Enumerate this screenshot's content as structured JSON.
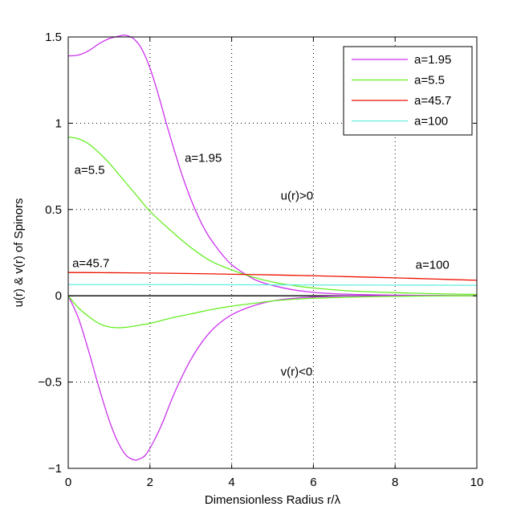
{
  "chart_data": {
    "type": "line",
    "title": "",
    "xlabel": "Dimensionless Radius r/λ",
    "ylabel": "u(r) & v(r) of Spinors",
    "xlim": [
      0,
      10
    ],
    "ylim": [
      -1,
      1.5
    ],
    "xticks": [
      0,
      2,
      4,
      6,
      8,
      10
    ],
    "xtick_labels": [
      "0",
      "2",
      "4",
      "6",
      "8",
      "10"
    ],
    "yticks": [
      -1,
      -0.5,
      0,
      0.5,
      1,
      1.5
    ],
    "ytick_labels": [
      "−1",
      "−0.5",
      "0",
      "0.5",
      "1",
      "1.5"
    ],
    "grid": true,
    "legend_position": "top-right",
    "legend": [
      {
        "label": "a=1.95",
        "color": "#cc33ee"
      },
      {
        "label": "a=5.5",
        "color": "#66ee22"
      },
      {
        "label": "a=45.7",
        "color": "#ee1100"
      },
      {
        "label": "a=100",
        "color": "#66eedd"
      }
    ],
    "series": [
      {
        "name": "a=1.95 u(r)",
        "color": "#cc33ee",
        "x": [
          0,
          0.25,
          0.5,
          0.75,
          1.0,
          1.25,
          1.4,
          1.6,
          1.8,
          2.0,
          2.2,
          2.4,
          2.6,
          2.8,
          3.0,
          3.2,
          3.4,
          3.6,
          3.8,
          4.0,
          4.3,
          4.6,
          5.0,
          5.5,
          6.0,
          6.5,
          7.0,
          8.0,
          9.0,
          10.0
        ],
        "y": [
          1.39,
          1.395,
          1.42,
          1.46,
          1.49,
          1.505,
          1.51,
          1.49,
          1.43,
          1.32,
          1.17,
          1.0,
          0.84,
          0.69,
          0.56,
          0.45,
          0.36,
          0.29,
          0.23,
          0.18,
          0.13,
          0.09,
          0.06,
          0.035,
          0.02,
          0.012,
          0.008,
          0.004,
          0.002,
          0.001
        ]
      },
      {
        "name": "a=1.95 v(r)",
        "color": "#cc33ee",
        "x": [
          0,
          0.25,
          0.5,
          0.75,
          1.0,
          1.2,
          1.4,
          1.6,
          1.75,
          1.9,
          2.1,
          2.3,
          2.5,
          2.7,
          3.0,
          3.3,
          3.6,
          4.0,
          4.5,
          5.0,
          5.5,
          6.0,
          6.5,
          7.0,
          8.0,
          9.0,
          10.0
        ],
        "y": [
          0,
          -0.13,
          -0.32,
          -0.53,
          -0.72,
          -0.84,
          -0.92,
          -0.95,
          -0.945,
          -0.92,
          -0.84,
          -0.74,
          -0.62,
          -0.51,
          -0.37,
          -0.26,
          -0.18,
          -0.11,
          -0.06,
          -0.03,
          -0.015,
          -0.007,
          -0.003,
          -0.001,
          0.0,
          0.0,
          0.0
        ]
      },
      {
        "name": "a=5.5 u(r)",
        "color": "#66ee22",
        "x": [
          0,
          0.25,
          0.5,
          0.75,
          1.0,
          1.25,
          1.5,
          1.75,
          2.0,
          2.5,
          3.0,
          3.5,
          4.0,
          4.5,
          5.0,
          5.5,
          6.0,
          6.5,
          7.0,
          8.0,
          9.0,
          10.0
        ],
        "y": [
          0.92,
          0.91,
          0.88,
          0.83,
          0.77,
          0.7,
          0.63,
          0.56,
          0.49,
          0.38,
          0.28,
          0.2,
          0.15,
          0.11,
          0.08,
          0.06,
          0.045,
          0.035,
          0.027,
          0.018,
          0.012,
          0.008
        ]
      },
      {
        "name": "a=5.5 v(r)",
        "color": "#66ee22",
        "x": [
          0,
          0.25,
          0.5,
          0.75,
          1.0,
          1.25,
          1.5,
          1.75,
          2.0,
          2.5,
          3.0,
          3.5,
          4.0,
          4.5,
          5.0,
          5.5,
          6.0,
          7.0,
          8.0,
          9.0,
          10.0
        ],
        "y": [
          0,
          -0.07,
          -0.12,
          -0.16,
          -0.18,
          -0.185,
          -0.18,
          -0.17,
          -0.16,
          -0.13,
          -0.105,
          -0.08,
          -0.06,
          -0.045,
          -0.03,
          -0.02,
          -0.014,
          -0.007,
          -0.003,
          -0.001,
          0
        ]
      },
      {
        "name": "a=45.7 u(r)",
        "color": "#ee1100",
        "x": [
          0,
          1,
          2,
          3,
          4,
          5,
          6,
          7,
          8,
          9,
          10
        ],
        "y": [
          0.135,
          0.134,
          0.132,
          0.129,
          0.125,
          0.121,
          0.116,
          0.11,
          0.104,
          0.097,
          0.09
        ]
      },
      {
        "name": "a=100 u(r)",
        "color": "#66eedd",
        "x": [
          0,
          2,
          4,
          6,
          8,
          10
        ],
        "y": [
          0.065,
          0.065,
          0.064,
          0.063,
          0.062,
          0.061
        ]
      }
    ],
    "annotations": [
      {
        "text": "a=1.95",
        "x": 2.85,
        "y": 0.8
      },
      {
        "text": "a=5.5",
        "x": 0.15,
        "y": 0.73
      },
      {
        "text": "u(r)>0",
        "x": 5.2,
        "y": 0.58
      },
      {
        "text": "a=45.7",
        "x": 0.1,
        "y": 0.19
      },
      {
        "text": "a=100",
        "x": 8.5,
        "y": 0.18
      },
      {
        "text": "v(r)<0",
        "x": 5.2,
        "y": -0.44
      }
    ]
  }
}
